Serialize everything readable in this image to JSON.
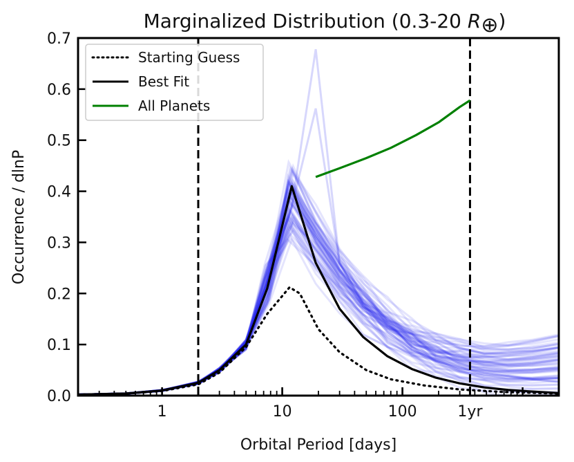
{
  "chart_data": {
    "type": "line",
    "title": "Marginalized Distribution (0.3-20 R⊕)",
    "title_main": "Marginalized Distribution (0.3-20 ",
    "title_symbol": "R",
    "title_subscript": "⊕",
    "title_close": ")",
    "xlabel": "Orbital Period [days]",
    "ylabel": "Occurrence / dlnP",
    "xscale": "log",
    "xlim": [
      0.2,
      2000
    ],
    "ylim": [
      0,
      0.7
    ],
    "x_ticks": [
      {
        "value": 1,
        "label": "1"
      },
      {
        "value": 10,
        "label": "10"
      },
      {
        "value": 100,
        "label": "100"
      },
      {
        "value": 365,
        "label": "1yr"
      }
    ],
    "y_ticks": [
      {
        "value": 0.0,
        "label": "0.0"
      },
      {
        "value": 0.1,
        "label": "0.1"
      },
      {
        "value": 0.2,
        "label": "0.2"
      },
      {
        "value": 0.3,
        "label": "0.3"
      },
      {
        "value": 0.4,
        "label": "0.4"
      },
      {
        "value": 0.5,
        "label": "0.5"
      },
      {
        "value": 0.6,
        "label": "0.6"
      },
      {
        "value": 0.7,
        "label": "0.7"
      }
    ],
    "vertical_lines": [
      2,
      365
    ],
    "legend": {
      "position": "top-left",
      "entries": [
        {
          "label": "Starting Guess",
          "style": "dotted",
          "color": "#000000"
        },
        {
          "label": "Best Fit",
          "style": "solid",
          "color": "#000000"
        },
        {
          "label": "All Planets",
          "style": "solid",
          "color": "#008000"
        }
      ]
    },
    "series": [
      {
        "name": "Starting Guess",
        "style": "dotted",
        "color": "#000000",
        "x": [
          0.2,
          0.5,
          1.0,
          2.0,
          3.0,
          5.0,
          7.5,
          11.5,
          14,
          20,
          30,
          50,
          80,
          150,
          300,
          700,
          2000
        ],
        "y": [
          0.002,
          0.004,
          0.009,
          0.022,
          0.045,
          0.095,
          0.16,
          0.212,
          0.2,
          0.13,
          0.085,
          0.05,
          0.032,
          0.02,
          0.012,
          0.007,
          0.004
        ]
      },
      {
        "name": "Best Fit",
        "style": "solid",
        "color": "#000000",
        "x": [
          0.2,
          0.5,
          1.0,
          2.0,
          3.0,
          5.0,
          7.5,
          12,
          19,
          30,
          47,
          75,
          120,
          190,
          300,
          480,
          760,
          1200,
          2000
        ],
        "y": [
          0.002,
          0.004,
          0.01,
          0.025,
          0.05,
          0.1,
          0.21,
          0.41,
          0.26,
          0.17,
          0.115,
          0.077,
          0.052,
          0.035,
          0.024,
          0.016,
          0.011,
          0.008,
          0.005
        ]
      },
      {
        "name": "All Planets",
        "style": "solid",
        "color": "#008000",
        "x": [
          19,
          30,
          50,
          80,
          130,
          200,
          300,
          365
        ],
        "y": [
          0.428,
          0.445,
          0.465,
          0.485,
          0.51,
          0.535,
          0.565,
          0.578
        ]
      }
    ],
    "posterior_samples": {
      "color": "#2222ee",
      "opacity": 0.12,
      "count": 60,
      "x": [
        0.2,
        0.5,
        1.0,
        2.0,
        3.0,
        5.0,
        7.5,
        12,
        19,
        30,
        47,
        75,
        120,
        190,
        300,
        480,
        760,
        1200,
        2000
      ],
      "base_y": [
        0.002,
        0.004,
        0.01,
        0.025,
        0.05,
        0.1,
        0.21,
        0.4,
        0.28,
        0.2,
        0.145,
        0.105,
        0.08,
        0.064,
        0.052,
        0.044,
        0.037,
        0.031,
        0.026
      ],
      "peak_range": [
        0.3,
        0.46
      ],
      "tail_range_at_2000": [
        0.0,
        0.12
      ],
      "outlier_peaks": [
        {
          "x": 19,
          "y": 0.678
        },
        {
          "x": 19,
          "y": 0.562
        }
      ]
    }
  }
}
